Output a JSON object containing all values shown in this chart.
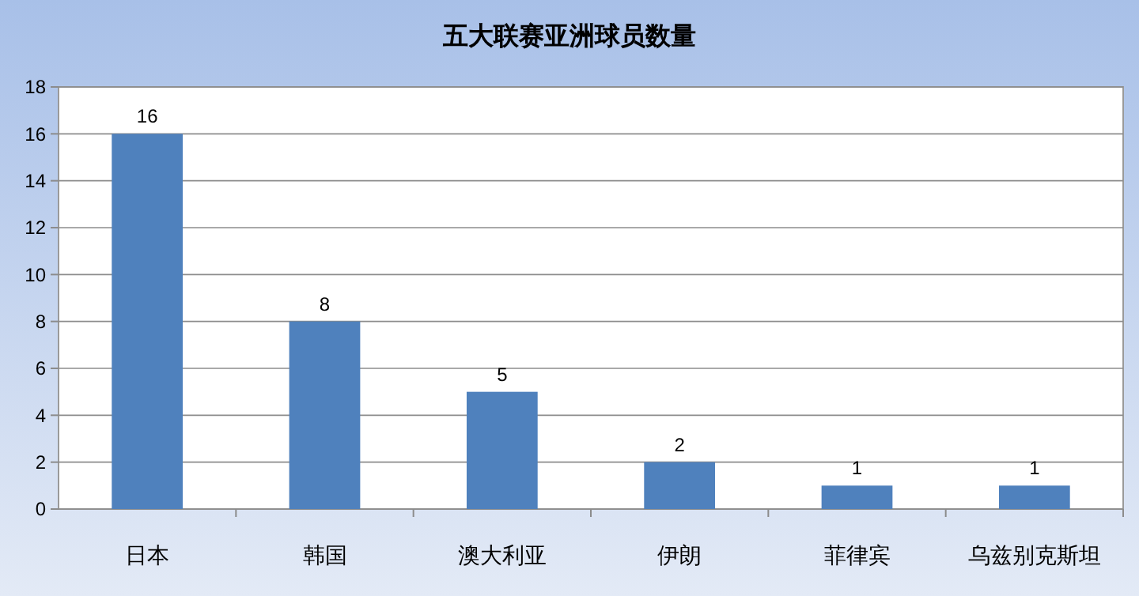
{
  "chart_data": {
    "type": "bar",
    "title": "五大联赛亚洲球员数量",
    "categories": [
      "日本",
      "韩国",
      "澳大利亚",
      "伊朗",
      "菲律宾",
      "乌兹别克斯坦"
    ],
    "values": [
      16,
      8,
      5,
      2,
      1,
      1
    ],
    "color": "#4f81bd",
    "ylim": [
      0,
      18
    ],
    "yticks": [
      0,
      2,
      4,
      6,
      8,
      10,
      12,
      14,
      16,
      18
    ],
    "grid": "y",
    "data_labels": true
  }
}
